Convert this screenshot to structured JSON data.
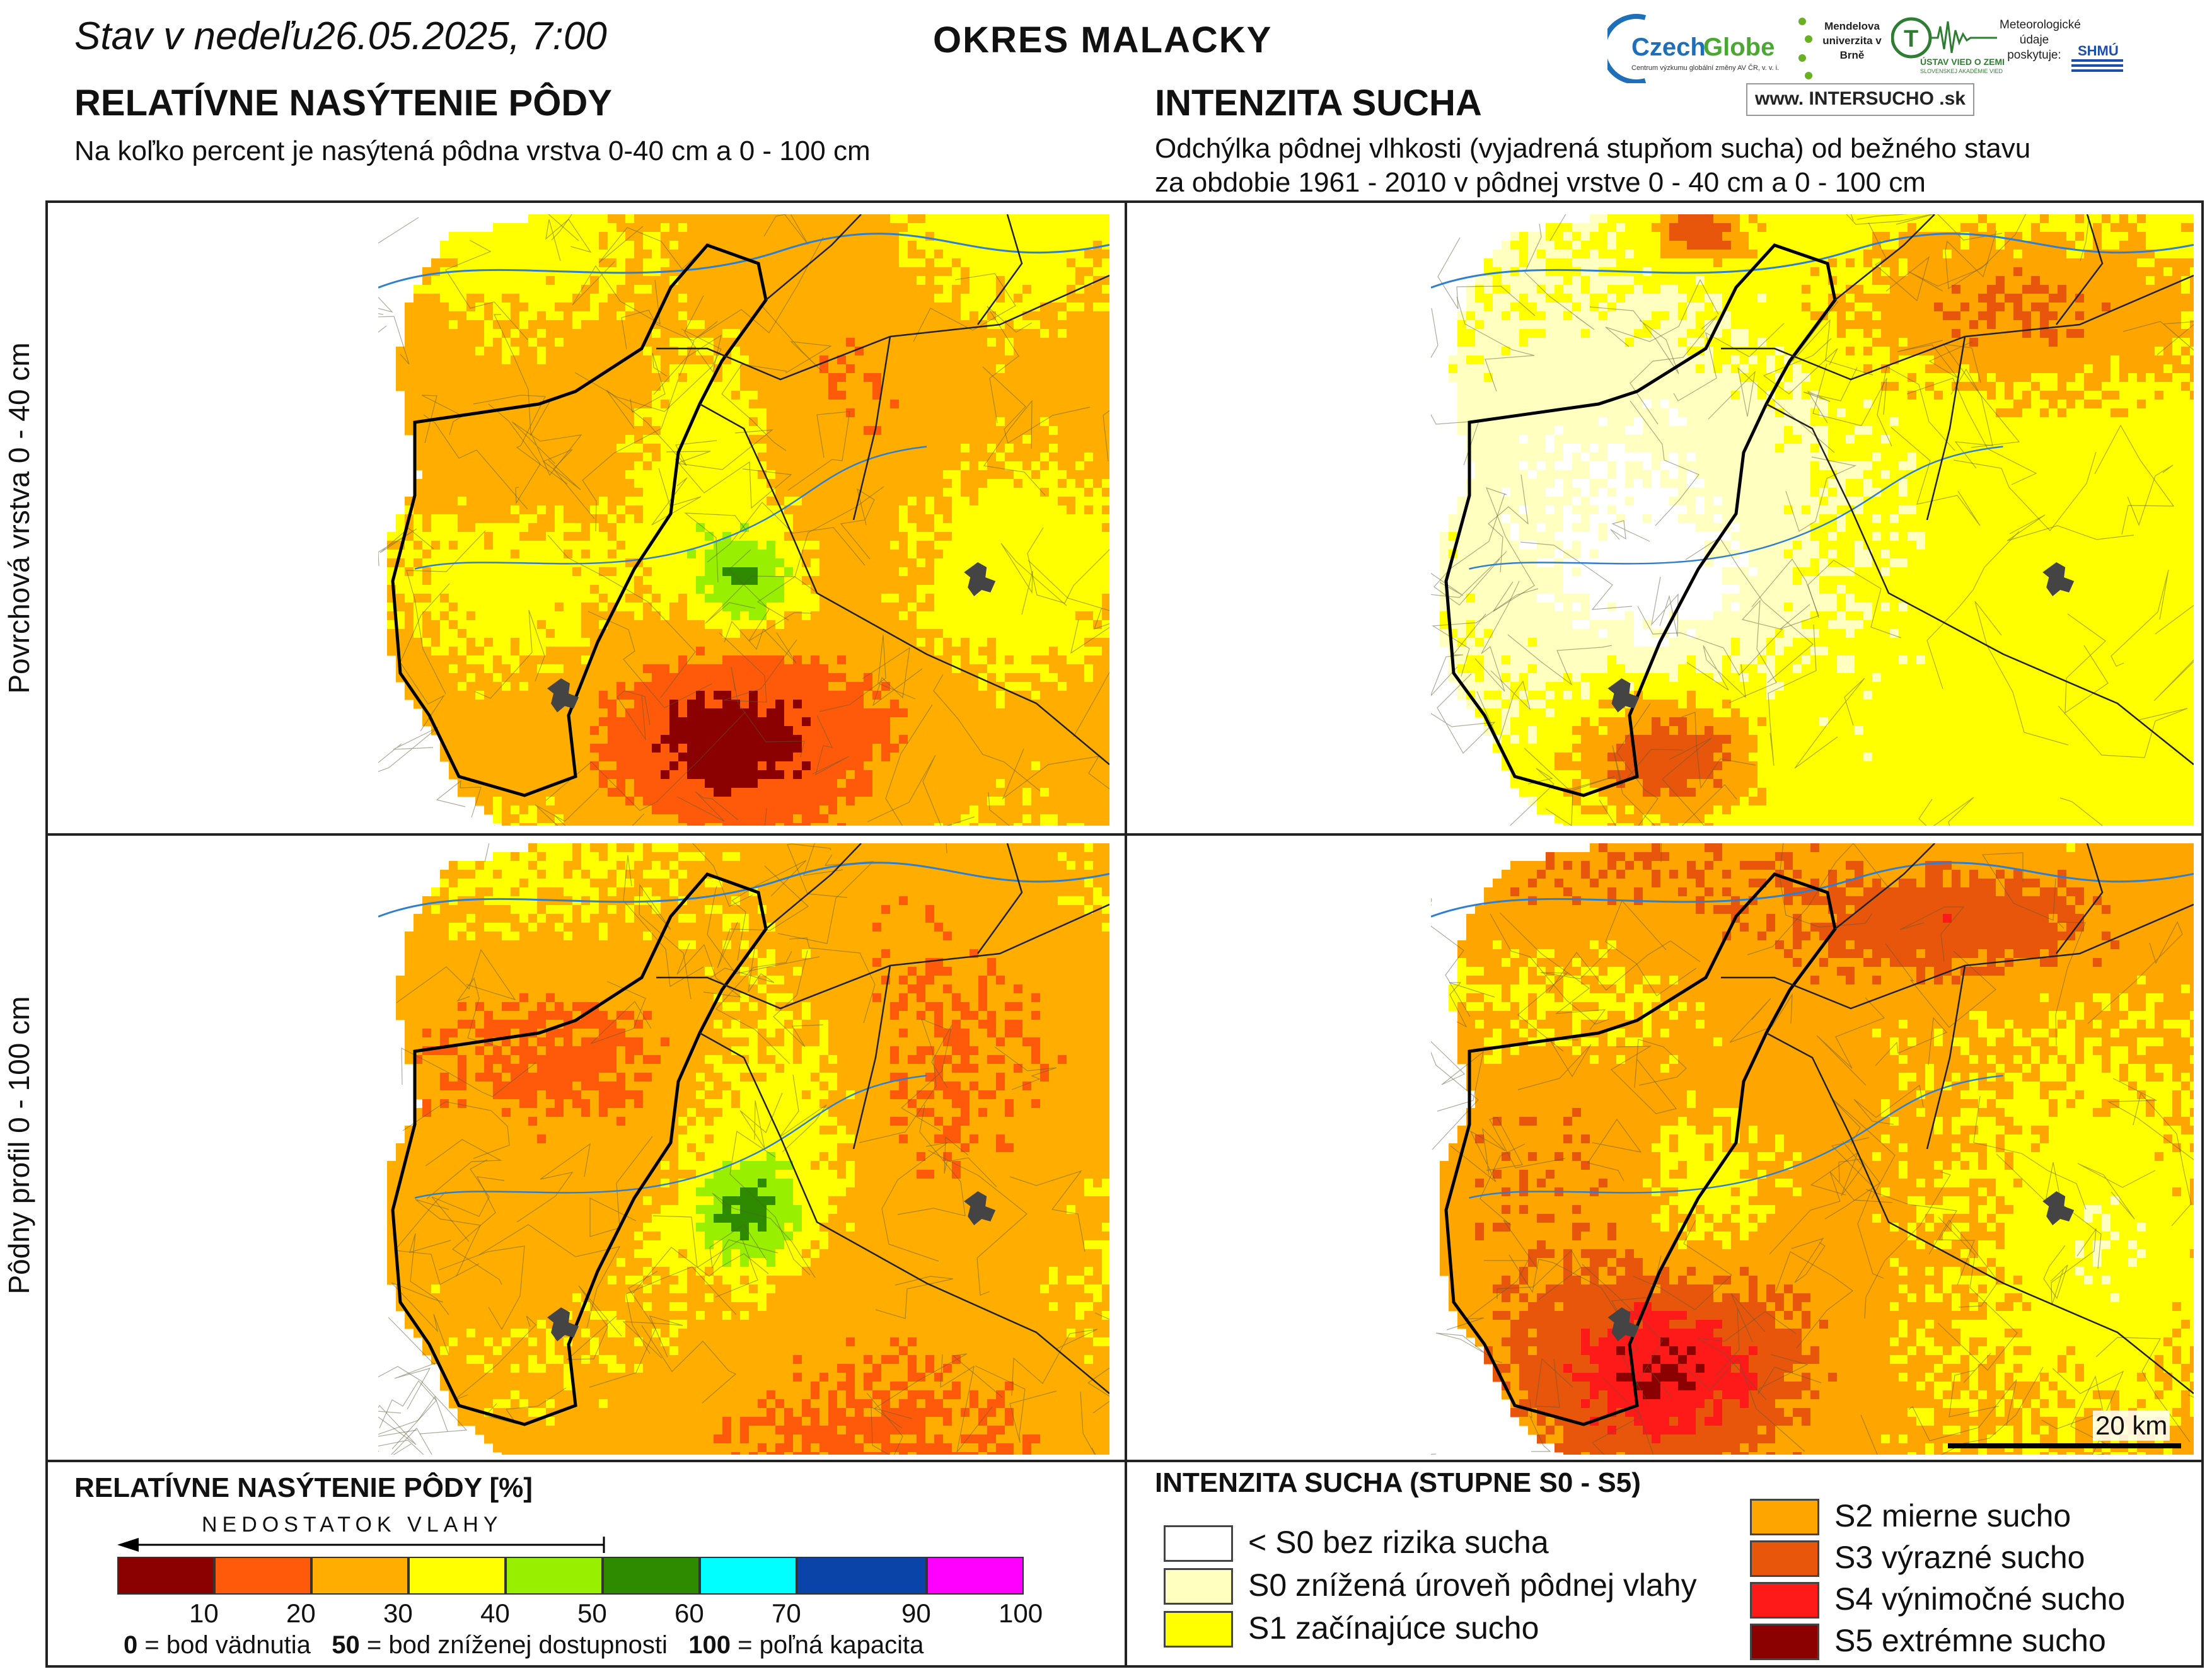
{
  "header": {
    "date_label": "Stav v nedeľu",
    "date_value": "26.05.2025, 7:00",
    "district": "OKRES  MALACKY"
  },
  "logos": {
    "czechglobe": "CzechGlobe",
    "czechglobe_sub": "Centrum výzkumu globální změny AV ČR, v. v. i.",
    "mendel": "Mendelova univerzita v Brně",
    "ustav": "ÚSTAV VIED O ZEMI",
    "ustav_sub": "SLOVENSKEJ AKADÉMIE VIED",
    "meteo": "Meteorologické údaje poskytuje:",
    "shmu": "SHMÚ",
    "intersucho": "www. INTERSUCHO .sk"
  },
  "left_panel": {
    "title": "RELATÍVNE NASÝTENIE PÔDY",
    "subtitle": "Na koľko percent je nasýtená pôdna vrstva 0-40 cm a 0 - 100 cm"
  },
  "right_panel": {
    "title": "INTENZITA SUCHA",
    "subtitle_line1": "Odchýlka pôdnej vlhkosti (vyjadrená stupňom sucha) od bežného stavu",
    "subtitle_line2": "za obdobie 1961 - 2010 v pôdnej vrstve 0 - 40 cm a 0 - 100 cm"
  },
  "rows": {
    "top": "Povrchová vrstva 0 - 40 cm",
    "bottom": "Pôdny profil 0 - 100 cm"
  },
  "scale_bar": "20 km",
  "legend_saturation": {
    "title": "RELATÍVNE NASÝTENIE PÔDY [%]",
    "arrow_text": "NEDOSTATOK VLAHY",
    "ticks": [
      "10",
      "20",
      "30",
      "40",
      "50",
      "60",
      "70",
      "90",
      "100"
    ],
    "colors": [
      "#8b0000",
      "#ff5a0a",
      "#ffae00",
      "#ffff00",
      "#98f000",
      "#2e8b00",
      "#00ffff",
      "#0b44a8",
      "#ff00ff"
    ],
    "note_1_value": "0",
    "note_1_text": "= bod vädnutia",
    "note_2_value": "50",
    "note_2_text": "= bod zníženej dostupnosti",
    "note_3_value": "100",
    "note_3_text": "= poľná kapacita"
  },
  "legend_drought": {
    "title": "INTENZITA SUCHA (STUPNE S0 - S5)",
    "items": [
      {
        "label": "< S0 bez rizika sucha",
        "color": "#ffffff"
      },
      {
        "label": "S0 znížená úroveň pôdnej vlahy",
        "color": "#ffffc0"
      },
      {
        "label": "S1 začínajúce sucho",
        "color": "#ffff00"
      },
      {
        "label": "S2 mierne sucho",
        "color": "#ffa500"
      },
      {
        "label": "S3 výrazné sucho",
        "color": "#e8560c"
      },
      {
        "label": "S4 výnimočné sucho",
        "color": "#ff1a1a"
      },
      {
        "label": "S5 extrémne sucho",
        "color": "#8b0000"
      }
    ]
  }
}
